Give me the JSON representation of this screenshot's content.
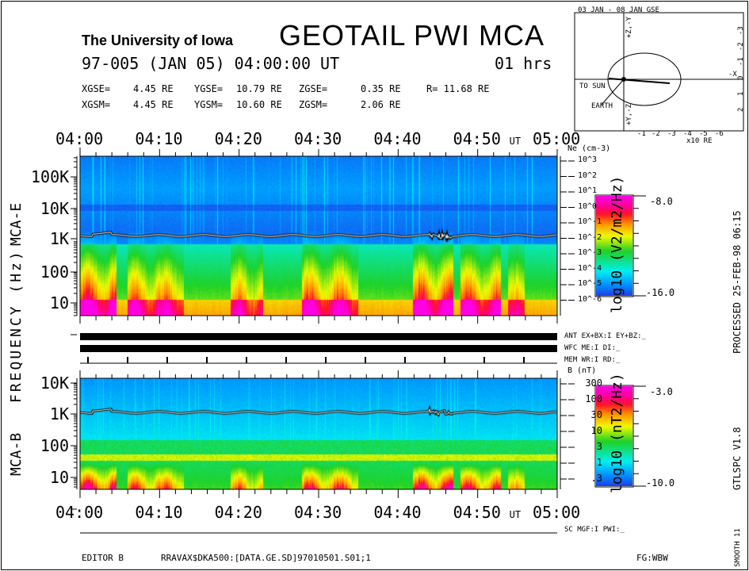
{
  "header": {
    "institution": "The University of Iowa",
    "title": "GEOTAIL PWI MCA",
    "date_line": "97-005 (JAN 05) 04:00:00 UT",
    "duration": "01 hrs",
    "gse": {
      "x_label": "XGSE=",
      "x": "4.45 RE",
      "y_label": "YGSE=",
      "y": "10.79 RE",
      "z_label": "ZGSE=",
      "z": "0.35 RE",
      "r": "R= 11.68 RE"
    },
    "gsm": {
      "x_label": "XGSM=",
      "x": "4.45 RE",
      "y_label": "YGSM=",
      "y": "10.60 RE",
      "z_label": "ZGSM=",
      "z": "2.06 RE"
    }
  },
  "orbit": {
    "title": "03 JAN - 08 JAN  GSE",
    "axis_top": "+Z,-Y",
    "axis_bottom": "+Y,-Z",
    "axis_right": "-X",
    "to_sun": "TO SUN",
    "earth": "EARTH",
    "x_ticks": [
      "-1",
      "-2",
      "-3",
      "-4",
      "-5",
      "-6"
    ],
    "x_unit": "x10 RE",
    "y_ticks": [
      "-3",
      "-2",
      "-1",
      "0",
      "1",
      "2"
    ]
  },
  "chart_data": [
    {
      "type": "heatmap",
      "name": "MCA-E",
      "x_ticks": [
        "04:00",
        "04:10",
        "04:20",
        "04:30",
        "04:40",
        "04:50",
        "05:00"
      ],
      "x_unit": "UT",
      "y_ticks": [
        "100K",
        "10K",
        "1K",
        "100",
        "10"
      ],
      "y_scale": "log",
      "y_label": "MCA-E",
      "right_axis_label": "Ne (cm-3)",
      "right_ticks": [
        "10^3",
        "10^2",
        "10^1",
        "10^0",
        "10^-1",
        "10^-2",
        "10^-3",
        "10^-4",
        "10^-5",
        "10^-6"
      ],
      "colorbar": {
        "label": "log10 (V2/m2/Hz)",
        "max": "-8.0",
        "min": "-16.0"
      }
    },
    {
      "type": "heatmap",
      "name": "MCA-B",
      "x_ticks": [
        "04:00",
        "04:10",
        "04:20",
        "04:30",
        "04:40",
        "04:50",
        "05:00"
      ],
      "x_unit": "UT",
      "y_ticks": [
        "10K",
        "1K",
        "100",
        "10"
      ],
      "y_scale": "log",
      "y_label": "MCA-B",
      "right_axis_label": "B (nT)",
      "right_ticks": [
        "300",
        "100",
        "30",
        "10",
        "3",
        "1",
        ".3"
      ],
      "colorbar": {
        "label": "log10 (nT2/Hz)",
        "max": "-3.0",
        "min": "-10.0"
      }
    }
  ],
  "shared_ylabel": "FREQUENCY (Hz)",
  "status": {
    "ant": "ANT EX+BX:I  EY+BZ:_",
    "wfc": "WFC ME:I     DI:_",
    "mem": "MEM WR:I     RD:_",
    "sc": "SC MGF:I     PWI:_"
  },
  "footer": {
    "editor": "EDITOR B",
    "file": "RRAVAX$DKA500:[DATA.GE.SD]97010501.S01;1",
    "fg": "FG:WBW",
    "processed": "PROCESSED 25-FEB-98  06:15",
    "version": "GTLSPC   V1.8",
    "smooth": "SMOOTH 11"
  }
}
